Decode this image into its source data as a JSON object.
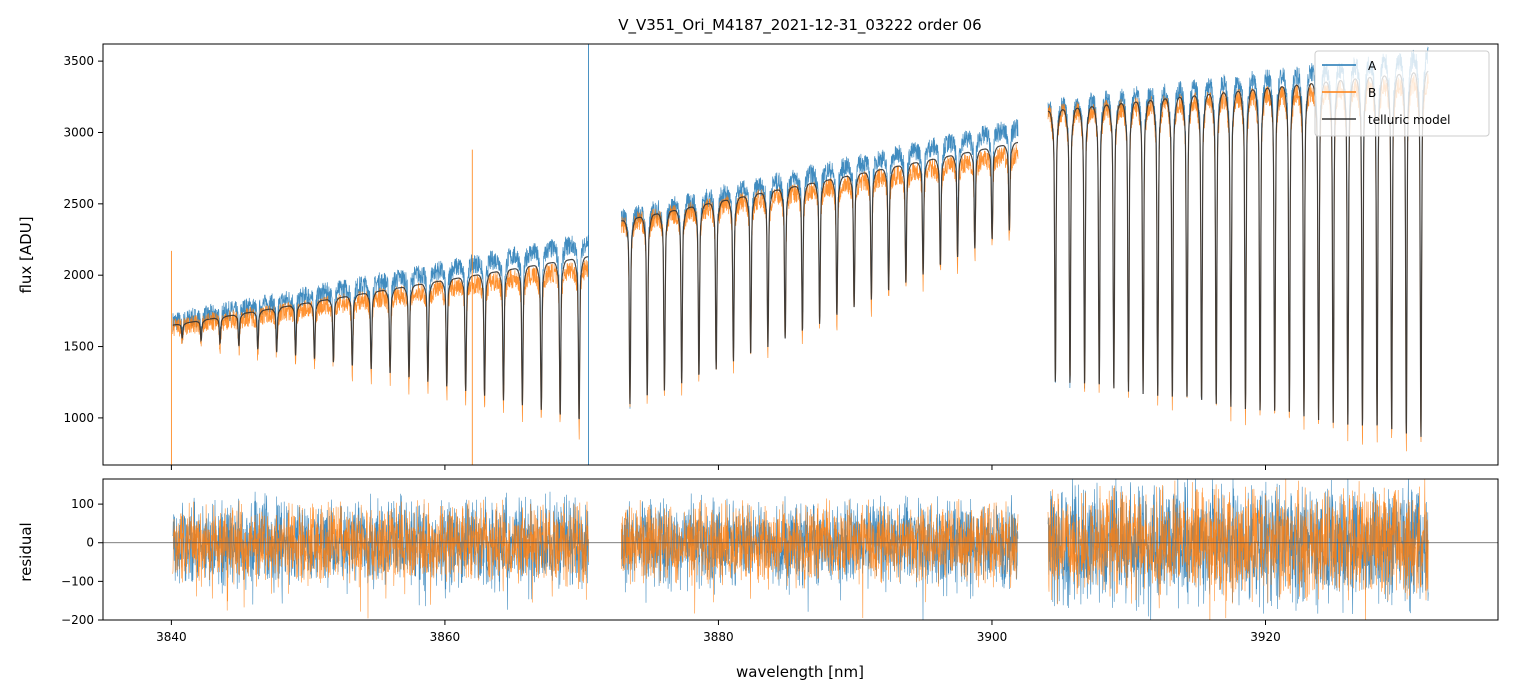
{
  "chart_data": [
    {
      "type": "line",
      "title": "V_V351_Ori_M4187_2021-12-31_03222  order 06",
      "xlabel": "",
      "ylabel": "flux [ADU]",
      "xlim": [
        3835,
        3937
      ],
      "ylim": [
        670,
        3620
      ],
      "xticks": [
        3840,
        3860,
        3880,
        3900,
        3920
      ],
      "yticks": [
        1000,
        1500,
        2000,
        2500,
        3000,
        3500
      ],
      "xtick_labels_visible": false,
      "legend_position": "top-right",
      "segments": [
        {
          "x0": 3840.1,
          "x1": 3870.5,
          "cont0": 1650,
          "cont1": 2130,
          "lines": 22,
          "depth0": 0.05,
          "depth1": 0.55
        },
        {
          "x0": 3872.9,
          "x1": 3901.9,
          "cont0": 2380,
          "cont1": 2930,
          "lines": 23,
          "depth0": 0.55,
          "depth1": 0.2
        },
        {
          "x0": 3904.1,
          "x1": 3931.9,
          "cont0": 3150,
          "cont1": 3430,
          "lines": 26,
          "depth0": 0.6,
          "depth1": 0.75
        }
      ],
      "series": [
        {
          "name": "A",
          "color": "#1f77b4",
          "offset": 80
        },
        {
          "name": "B",
          "color": "#ff7f0e",
          "offset": -60
        },
        {
          "name": "telluric model",
          "color": "#333333",
          "offset": 0
        }
      ],
      "annotations": [
        {
          "type": "spike",
          "series": "B",
          "x": 3840.0,
          "y": 2170
        },
        {
          "type": "spike",
          "series": "B",
          "x": 3862.0,
          "y": 2880
        },
        {
          "type": "spike",
          "series": "A",
          "x": 3870.5,
          "y": 3620
        }
      ]
    },
    {
      "type": "line",
      "title": "",
      "xlabel": "wavelength [nm]",
      "ylabel": "residual",
      "xlim": [
        3835,
        3937
      ],
      "ylim": [
        -200,
        165
      ],
      "xticks": [
        3840,
        3860,
        3880,
        3900,
        3920
      ],
      "yticks": [
        -200,
        -100,
        0,
        100
      ],
      "reference_line": 0,
      "series": [
        {
          "name": "A",
          "color": "#1f77b4",
          "noise_amplitude": 90
        },
        {
          "name": "B",
          "color": "#ff7f0e",
          "noise_amplitude": 80
        }
      ]
    }
  ]
}
